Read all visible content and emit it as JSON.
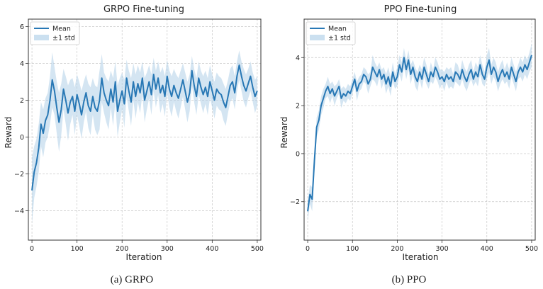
{
  "colors": {
    "mean_line": "#2878b5",
    "std_band": "#a9cbe6",
    "grid": "#c8c8c8",
    "axes": "#333333"
  },
  "chart_data": [
    {
      "type": "line",
      "title": "GRPO Fine-tuning",
      "caption": "(a) GRPO",
      "xlabel": "Iteration",
      "ylabel": "Reward",
      "xlim": [
        -8,
        508
      ],
      "ylim": [
        -5.6,
        6.4
      ],
      "xticks": [
        0,
        100,
        200,
        300,
        400,
        500
      ],
      "yticks": [
        -4,
        -2,
        0,
        2,
        4,
        6
      ],
      "grid": true,
      "legend_position": "top-left",
      "legend": [
        "Mean",
        "±1 std"
      ],
      "series": [
        {
          "name": "Mean",
          "x": [
            0,
            5,
            10,
            15,
            20,
            25,
            30,
            35,
            40,
            45,
            50,
            55,
            60,
            65,
            70,
            75,
            80,
            85,
            90,
            95,
            100,
            105,
            110,
            115,
            120,
            125,
            130,
            135,
            140,
            145,
            150,
            155,
            160,
            165,
            170,
            175,
            180,
            185,
            190,
            195,
            200,
            205,
            210,
            215,
            220,
            225,
            230,
            235,
            240,
            245,
            250,
            255,
            260,
            265,
            270,
            275,
            280,
            285,
            290,
            295,
            300,
            305,
            310,
            315,
            320,
            325,
            330,
            335,
            340,
            345,
            350,
            355,
            360,
            365,
            370,
            375,
            380,
            385,
            390,
            395,
            400,
            405,
            410,
            415,
            420,
            425,
            430,
            435,
            440,
            445,
            450,
            455,
            460,
            465,
            470,
            475,
            480,
            485,
            490,
            495,
            500
          ],
          "y": [
            -2.9,
            -1.9,
            -1.4,
            -0.6,
            0.7,
            0.2,
            0.9,
            1.2,
            2.0,
            3.1,
            2.5,
            1.6,
            0.8,
            1.5,
            2.6,
            2.0,
            1.3,
            1.9,
            2.2,
            1.4,
            2.3,
            1.8,
            1.2,
            1.9,
            2.4,
            1.7,
            1.4,
            2.2,
            1.6,
            1.4,
            2.0,
            3.2,
            2.4,
            2.0,
            1.7,
            2.6,
            1.9,
            3.0,
            1.4,
            2.0,
            2.5,
            1.8,
            3.2,
            2.5,
            1.9,
            3.0,
            2.2,
            2.9,
            2.4,
            3.2,
            2.0,
            2.5,
            3.0,
            2.3,
            3.4,
            2.6,
            3.2,
            2.4,
            2.8,
            2.2,
            3.3,
            2.6,
            2.2,
            2.8,
            2.4,
            2.1,
            2.6,
            3.1,
            2.5,
            1.9,
            2.4,
            3.6,
            2.8,
            2.2,
            3.2,
            2.7,
            2.3,
            2.7,
            2.2,
            3.0,
            2.5,
            2.0,
            2.6,
            2.4,
            2.3,
            1.9,
            1.6,
            2.2,
            2.8,
            3.0,
            2.4,
            3.3,
            3.9,
            3.3,
            2.8,
            2.5,
            2.9,
            3.3,
            2.7,
            2.2,
            2.5
          ]
        },
        {
          "name": "±1 std",
          "x": [
            0,
            5,
            10,
            15,
            20,
            25,
            30,
            35,
            40,
            45,
            50,
            55,
            60,
            65,
            70,
            75,
            80,
            85,
            90,
            95,
            100,
            105,
            110,
            115,
            120,
            125,
            130,
            135,
            140,
            145,
            150,
            155,
            160,
            165,
            170,
            175,
            180,
            185,
            190,
            195,
            200,
            205,
            210,
            215,
            220,
            225,
            230,
            235,
            240,
            245,
            250,
            255,
            260,
            265,
            270,
            275,
            280,
            285,
            290,
            295,
            300,
            305,
            310,
            315,
            320,
            325,
            330,
            335,
            340,
            345,
            350,
            355,
            360,
            365,
            370,
            375,
            380,
            385,
            390,
            395,
            400,
            405,
            410,
            415,
            420,
            425,
            430,
            435,
            440,
            445,
            450,
            455,
            460,
            465,
            470,
            475,
            480,
            485,
            490,
            495,
            500
          ],
          "std": [
            1.8,
            1.4,
            1.3,
            1.3,
            1.2,
            1.3,
            1.2,
            1.2,
            1.3,
            1.5,
            1.3,
            1.4,
            1.6,
            1.4,
            1.1,
            1.3,
            1.5,
            1.2,
            1.0,
            1.3,
            1.1,
            1.2,
            1.3,
            1.1,
            1.0,
            1.2,
            1.3,
            1.0,
            1.2,
            1.3,
            1.6,
            1.3,
            1.1,
            1.2,
            1.3,
            1.0,
            1.3,
            1.1,
            1.4,
            1.2,
            1.0,
            1.3,
            1.0,
            1.1,
            1.3,
            1.0,
            1.2,
            1.0,
            1.1,
            0.9,
            1.2,
            1.0,
            0.9,
            1.1,
            0.9,
            1.0,
            0.9,
            1.1,
            1.0,
            1.1,
            0.9,
            1.0,
            1.1,
            0.9,
            1.0,
            1.1,
            1.0,
            0.9,
            1.0,
            1.1,
            1.0,
            0.8,
            0.9,
            1.0,
            0.9,
            0.9,
            1.0,
            0.9,
            1.0,
            0.9,
            0.9,
            1.0,
            0.9,
            0.9,
            0.9,
            1.0,
            1.0,
            0.9,
            0.9,
            0.9,
            0.9,
            0.8,
            0.8,
            0.8,
            0.9,
            0.9,
            0.8,
            0.8,
            0.8,
            0.9,
            0.8
          ]
        }
      ]
    },
    {
      "type": "line",
      "title": "PPO Fine-tuning",
      "caption": "(b) PPO",
      "xlabel": "Iteration",
      "ylabel": "Reward",
      "xlim": [
        -8,
        508
      ],
      "ylim": [
        -3.6,
        5.6
      ],
      "xticks": [
        0,
        100,
        200,
        300,
        400,
        500
      ],
      "yticks": [
        -2,
        0,
        2,
        4
      ],
      "grid": true,
      "legend_position": "top-left",
      "legend": [
        "Mean",
        "±1 std"
      ],
      "series": [
        {
          "name": "Mean",
          "x": [
            0,
            5,
            10,
            15,
            20,
            25,
            30,
            35,
            40,
            45,
            50,
            55,
            60,
            65,
            70,
            75,
            80,
            85,
            90,
            95,
            100,
            105,
            110,
            115,
            120,
            125,
            130,
            135,
            140,
            145,
            150,
            155,
            160,
            165,
            170,
            175,
            180,
            185,
            190,
            195,
            200,
            205,
            210,
            215,
            220,
            225,
            230,
            235,
            240,
            245,
            250,
            255,
            260,
            265,
            270,
            275,
            280,
            285,
            290,
            295,
            300,
            305,
            310,
            315,
            320,
            325,
            330,
            335,
            340,
            345,
            350,
            355,
            360,
            365,
            370,
            375,
            380,
            385,
            390,
            395,
            400,
            405,
            410,
            415,
            420,
            425,
            430,
            435,
            440,
            445,
            450,
            455,
            460,
            465,
            470,
            475,
            480,
            485,
            490,
            495,
            500
          ],
          "y": [
            -2.4,
            -1.7,
            -1.9,
            -0.3,
            1.1,
            1.4,
            2.0,
            2.3,
            2.6,
            2.8,
            2.5,
            2.7,
            2.4,
            2.6,
            2.8,
            2.3,
            2.5,
            2.4,
            2.6,
            2.5,
            2.8,
            3.1,
            2.6,
            2.9,
            3.0,
            3.3,
            3.2,
            2.9,
            3.1,
            3.6,
            3.4,
            3.2,
            3.5,
            3.1,
            3.3,
            2.9,
            3.2,
            2.8,
            3.4,
            3.0,
            3.2,
            3.7,
            3.4,
            4.0,
            3.5,
            3.9,
            3.3,
            3.6,
            3.2,
            3.0,
            3.4,
            3.1,
            3.6,
            3.3,
            3.0,
            3.4,
            3.2,
            3.6,
            3.4,
            3.1,
            3.2,
            3.0,
            3.3,
            3.1,
            3.2,
            3.0,
            3.4,
            3.3,
            3.1,
            3.5,
            3.2,
            3.0,
            3.3,
            3.5,
            3.1,
            3.4,
            3.2,
            3.7,
            3.3,
            3.1,
            3.6,
            3.9,
            3.3,
            3.6,
            3.4,
            3.0,
            3.3,
            3.5,
            3.2,
            3.4,
            3.1,
            3.6,
            3.3,
            3.0,
            3.4,
            3.6,
            3.4,
            3.7,
            3.5,
            3.8,
            4.1
          ]
        },
        {
          "name": "±1 std",
          "x": [
            0,
            5,
            10,
            15,
            20,
            25,
            30,
            35,
            40,
            45,
            50,
            55,
            60,
            65,
            70,
            75,
            80,
            85,
            90,
            95,
            100,
            105,
            110,
            115,
            120,
            125,
            130,
            135,
            140,
            145,
            150,
            155,
            160,
            165,
            170,
            175,
            180,
            185,
            190,
            195,
            200,
            205,
            210,
            215,
            220,
            225,
            230,
            235,
            240,
            245,
            250,
            255,
            260,
            265,
            270,
            275,
            280,
            285,
            290,
            295,
            300,
            305,
            310,
            315,
            320,
            325,
            330,
            335,
            340,
            345,
            350,
            355,
            360,
            365,
            370,
            375,
            380,
            385,
            390,
            395,
            400,
            405,
            410,
            415,
            420,
            425,
            430,
            435,
            440,
            445,
            450,
            455,
            460,
            465,
            470,
            475,
            480,
            485,
            490,
            495,
            500
          ],
          "std": [
            0.4,
            0.4,
            0.5,
            0.4,
            0.4,
            0.4,
            0.4,
            0.4,
            0.3,
            0.4,
            0.4,
            0.3,
            0.4,
            0.3,
            0.3,
            0.4,
            0.3,
            0.3,
            0.3,
            0.3,
            0.3,
            0.3,
            0.4,
            0.3,
            0.3,
            0.3,
            0.3,
            0.4,
            0.3,
            0.5,
            0.4,
            0.4,
            0.3,
            0.4,
            0.3,
            0.4,
            0.4,
            0.4,
            0.4,
            0.3,
            0.4,
            0.4,
            0.4,
            0.4,
            0.4,
            0.4,
            0.4,
            0.3,
            0.4,
            0.4,
            0.3,
            0.4,
            0.4,
            0.4,
            0.3,
            0.4,
            0.3,
            0.4,
            0.4,
            0.4,
            0.3,
            0.4,
            0.3,
            0.4,
            0.4,
            0.3,
            0.4,
            0.4,
            0.3,
            0.4,
            0.4,
            0.4,
            0.4,
            0.4,
            0.3,
            0.4,
            0.4,
            0.4,
            0.4,
            0.3,
            0.5,
            0.5,
            0.4,
            0.4,
            0.4,
            0.4,
            0.4,
            0.4,
            0.3,
            0.4,
            0.4,
            0.4,
            0.4,
            0.4,
            0.3,
            0.4,
            0.4,
            0.4,
            0.4,
            0.4,
            0.5
          ]
        }
      ]
    }
  ]
}
